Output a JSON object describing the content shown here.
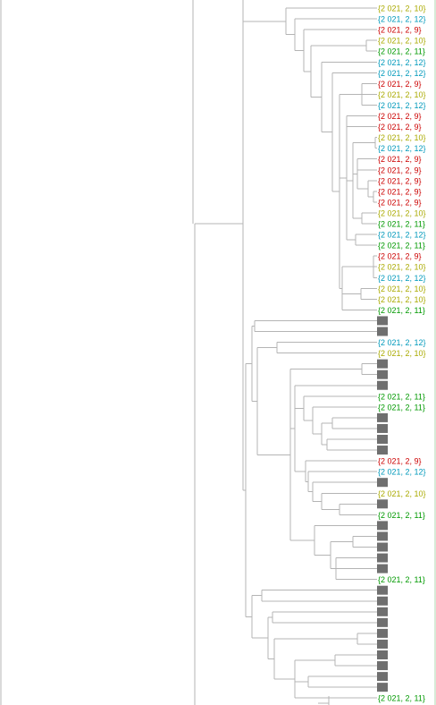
{
  "colors": {
    "branch": "#b4b4b4",
    "collapsed_box": "#6f6f6f",
    "feb_9": "#cc0000",
    "feb_10": "#aaaa00",
    "feb_11": "#009900",
    "feb_12": "#0099bb"
  },
  "leaves": [
    {
      "text": "{2 021, 2, 10}",
      "color": "feb_10"
    },
    {
      "text": "{2 021, 2, 12}",
      "color": "feb_12"
    },
    {
      "text": "{2 021, 2, 9}",
      "color": "feb_9"
    },
    {
      "text": "{2 021, 2, 10}",
      "color": "feb_10"
    },
    {
      "text": "{2 021, 2, 11}",
      "color": "feb_11"
    },
    {
      "text": "{2 021, 2, 12}",
      "color": "feb_12"
    },
    {
      "text": "{2 021, 2, 12}",
      "color": "feb_12"
    },
    {
      "text": "{2 021, 2, 9}",
      "color": "feb_9"
    },
    {
      "text": "{2 021, 2, 10}",
      "color": "feb_10"
    },
    {
      "text": "{2 021, 2, 12}",
      "color": "feb_12"
    },
    {
      "text": "{2 021, 2, 9}",
      "color": "feb_9"
    },
    {
      "text": "{2 021, 2, 9}",
      "color": "feb_9"
    },
    {
      "text": "{2 021, 2, 10}",
      "color": "feb_10"
    },
    {
      "text": "{2 021, 2, 12}",
      "color": "feb_12"
    },
    {
      "text": "{2 021, 2, 9}",
      "color": "feb_9"
    },
    {
      "text": "{2 021, 2, 9}",
      "color": "feb_9"
    },
    {
      "text": "{2 021, 2, 9}",
      "color": "feb_9"
    },
    {
      "text": "{2 021, 2, 9}",
      "color": "feb_9"
    },
    {
      "text": "{2 021, 2, 9}",
      "color": "feb_9"
    },
    {
      "text": "{2 021, 2, 10}",
      "color": "feb_10"
    },
    {
      "text": "{2 021, 2, 11}",
      "color": "feb_11"
    },
    {
      "text": "{2 021, 2, 12}",
      "color": "feb_12"
    },
    {
      "text": "{2 021, 2, 11}",
      "color": "feb_11"
    },
    {
      "text": "{2 021, 2, 9}",
      "color": "feb_9"
    },
    {
      "text": "{2 021, 2, 10}",
      "color": "feb_10"
    },
    {
      "text": "{2 021, 2, 12}",
      "color": "feb_12"
    },
    {
      "text": "{2 021, 2, 10}",
      "color": "feb_10"
    },
    {
      "text": "{2 021, 2, 10}",
      "color": "feb_10"
    },
    {
      "text": "{2 021, 2, 11}",
      "color": "feb_11"
    },
    {
      "box": true
    },
    {
      "box": true
    },
    {
      "text": "{2 021, 2, 12}",
      "color": "feb_12"
    },
    {
      "text": "{2 021, 2, 10}",
      "color": "feb_10"
    },
    {
      "box": true
    },
    {
      "box": true
    },
    {
      "box": true
    },
    {
      "text": "{2 021, 2, 11}",
      "color": "feb_11"
    },
    {
      "text": "{2 021, 2, 11}",
      "color": "feb_11"
    },
    {
      "box": true
    },
    {
      "box": true
    },
    {
      "box": true
    },
    {
      "box": true
    },
    {
      "text": "{2 021, 2, 9}",
      "color": "feb_9"
    },
    {
      "text": "{2 021, 2, 12}",
      "color": "feb_12"
    },
    {
      "box": true
    },
    {
      "text": "{2 021, 2, 10}",
      "color": "feb_10"
    },
    {
      "box": true
    },
    {
      "text": "{2 021, 2, 11}",
      "color": "feb_11"
    },
    {
      "box": true
    },
    {
      "box": true
    },
    {
      "box": true
    },
    {
      "box": true
    },
    {
      "box": true
    },
    {
      "text": "{2 021, 2, 11}",
      "color": "feb_11"
    },
    {
      "box": true
    },
    {
      "box": true
    },
    {
      "box": true
    },
    {
      "box": true
    },
    {
      "box": true
    },
    {
      "box": true
    },
    {
      "box": true
    },
    {
      "box": true
    },
    {
      "box": true
    },
    {
      "box": true
    },
    {
      "text": "{2 021, 2, 11}",
      "color": "feb_11"
    }
  ]
}
